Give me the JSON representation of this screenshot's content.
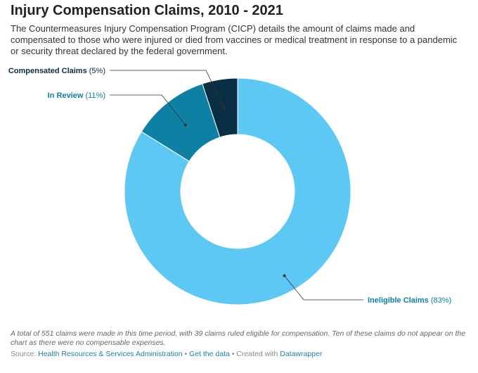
{
  "title": "Injury Compensation Claims, 2010 - 2021",
  "subtitle": "The Countermeasures Injury Compensation Program (CICP) details the amount of claims made and compensated to those who were injured or died from vaccines or medical treatment in response to a pandemic or security threat declared by the federal government.",
  "chart_data": {
    "type": "pie",
    "title": "Injury Compensation Claims, 2010 - 2021",
    "slices": [
      {
        "name": "Compensated Claims",
        "value_label": "(5%)",
        "value": 5,
        "color": "#0a2f45"
      },
      {
        "name": "In Review",
        "value_label": "(11%)",
        "value": 11,
        "color": "#0e80a3"
      },
      {
        "name": "Ineligible Claims",
        "value_label": "(83%)",
        "value": 83,
        "color": "#5dc8f4"
      }
    ]
  },
  "notes": "A total of 551 claims were made in this time period, with 39 claims ruled eligible for compensation. Ten of these claims do not appear on the chart as there were no compensable expenses.",
  "footer": {
    "source_label": "Source: ",
    "source_link": "Health Resources & Services Administration",
    "separator": " • ",
    "data_link": "Get the data",
    "created_with": "Created with ",
    "tool_link": "Datawrapper"
  }
}
